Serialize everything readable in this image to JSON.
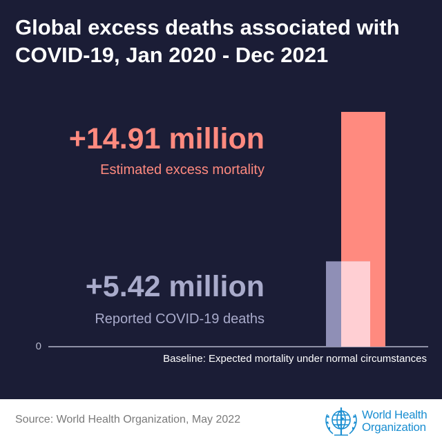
{
  "title": "Global excess deaths associated with COVID-19, Jan 2020 - Dec 2021",
  "highlights": {
    "estimated": {
      "value": "+14.91 million",
      "label": "Estimated excess mortality"
    },
    "reported": {
      "value": "+5.42 million",
      "label": "Reported COVID-19 deaths"
    }
  },
  "chart_data": {
    "type": "bar",
    "categories": [
      "Reported COVID-19 deaths",
      "Estimated excess mortality"
    ],
    "values": [
      5.42,
      14.91
    ],
    "unit": "million",
    "ylim": [
      0,
      14.91
    ],
    "ytick_labels": [
      "0"
    ],
    "baseline_label": "Baseline: Expected mortality under normal circumstances",
    "grid": false,
    "colors": {
      "estimated": "#ff8a7f",
      "reported": "#8f8fb6",
      "overlap": "#ffcfd3"
    }
  },
  "footer": {
    "source": "Source: World Health Organization, May 2022",
    "logo_text": [
      "World Health",
      "Organization"
    ],
    "logo_icon": "who-emblem-icon"
  },
  "colors": {
    "background": "#1b1d36",
    "title": "#ffffff",
    "estimated_text": "#ff8a7f",
    "reported_text": "#a9abcb",
    "footer_bg": "#ffffff",
    "logo_blue": "#1a8ed1"
  }
}
